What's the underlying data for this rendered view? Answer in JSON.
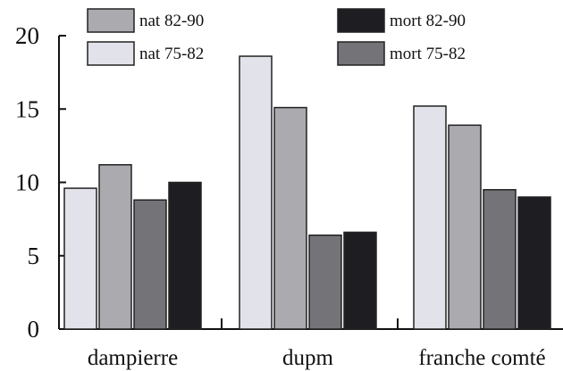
{
  "chart_data": {
    "type": "bar",
    "title": "",
    "xlabel": "",
    "ylabel": "",
    "ylim": [
      0,
      20
    ],
    "yticks": [
      0,
      5,
      10,
      15,
      20
    ],
    "ytick_labels": [
      "0",
      "5",
      "10",
      "15",
      "20"
    ],
    "categories": [
      "dampierre",
      "dupm",
      "franche comté"
    ],
    "grid": false,
    "legend_position": "top",
    "series": [
      {
        "name": "nat 75-82",
        "color": "#e2e2ea",
        "values": [
          9.6,
          18.6,
          15.2
        ]
      },
      {
        "name": "nat 82-90",
        "color": "#aaaaaf",
        "values": [
          11.2,
          15.1,
          13.9
        ]
      },
      {
        "name": "mort 75-82",
        "color": "#737378",
        "values": [
          8.8,
          6.4,
          9.5
        ]
      },
      {
        "name": "mort 82-90",
        "color": "#1e1e22",
        "values": [
          10.0,
          6.6,
          9.0
        ]
      }
    ],
    "legend_order": [
      "nat 82-90",
      "nat 75-82",
      "mort 82-90",
      "mort 75-82"
    ]
  }
}
